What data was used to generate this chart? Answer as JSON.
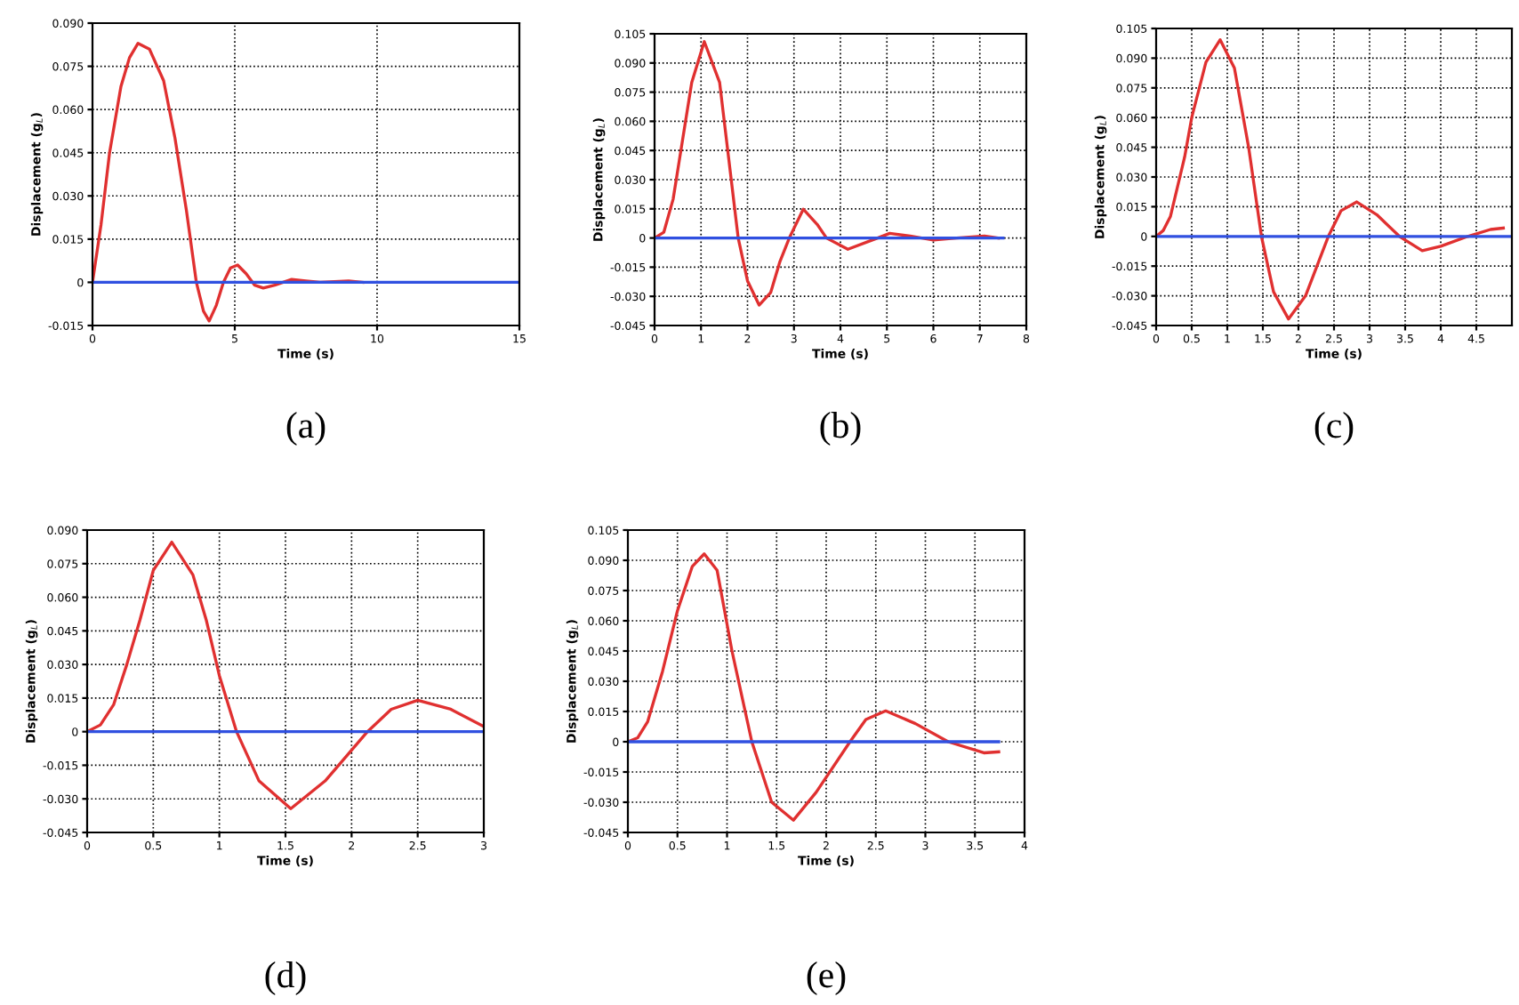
{
  "chart_data": [
    {
      "type": "line",
      "xlabel": "Time (s)",
      "ylabel": "Displacement (g$_{L}$)",
      "annotations": [
        "(a)"
      ],
      "xlim": [
        0,
        15
      ],
      "ylim": [
        -0.015,
        0.09
      ],
      "xticks": [
        0,
        5,
        10,
        15
      ],
      "yticks": [
        -0.015,
        0,
        0.015,
        {
          "value": 0.03,
          "label": "0.030"
        },
        0.045,
        {
          "value": 0.06,
          "label": "0.060"
        },
        0.075,
        {
          "value": 0.09,
          "label": "0.090"
        }
      ],
      "grid": true,
      "series": [
        {
          "color": "#e03030",
          "x": [
            0,
            0.3,
            0.6,
            1.0,
            1.3,
            1.6,
            2.0,
            2.5,
            2.9,
            3.3,
            3.65,
            3.9,
            4.1,
            4.35,
            4.6,
            4.85,
            5.1,
            5.4,
            5.7,
            6.0,
            6.4,
            7.0,
            7.5,
            8.0,
            9.0,
            9.5
          ],
          "values": [
            0,
            0.02,
            0.045,
            0.068,
            0.078,
            0.083,
            0.081,
            0.07,
            0.05,
            0.025,
            0,
            -0.01,
            -0.0134,
            -0.008,
            0,
            0.005,
            0.006,
            0.003,
            -0.001,
            -0.002,
            -0.001,
            0.001,
            0.0005,
            0,
            0.0005,
            0
          ]
        },
        {
          "color": "#3050e0",
          "x": [
            0,
            15
          ],
          "values": [
            0,
            0
          ]
        }
      ]
    },
    {
      "type": "line",
      "xlabel": "Time (s)",
      "ylabel": "Displacement (g$_{L}$)",
      "annotations": [
        "(b)"
      ],
      "xlim": [
        0,
        8
      ],
      "ylim": [
        -0.045,
        0.105
      ],
      "xticks": [
        0,
        1,
        2,
        3,
        4,
        5,
        6,
        7,
        8
      ],
      "yticks": [
        -0.045,
        {
          "value": -0.03,
          "label": "-0.030"
        },
        -0.015,
        0,
        0.015,
        {
          "value": 0.03,
          "label": "0.030"
        },
        0.045,
        {
          "value": 0.06,
          "label": "0.060"
        },
        0.075,
        {
          "value": 0.09,
          "label": "0.090"
        },
        0.105
      ],
      "grid": true,
      "series": [
        {
          "color": "#e03030",
          "x": [
            0,
            0.2,
            0.4,
            0.6,
            0.8,
            1.07,
            1.4,
            1.6,
            1.8,
            2.0,
            2.25,
            2.5,
            2.7,
            2.9,
            3.2,
            3.5,
            3.7,
            4.16,
            4.8,
            5.06,
            5.5,
            6.0,
            6.5,
            7.1,
            7.4
          ],
          "values": [
            0,
            0.003,
            0.02,
            0.05,
            0.08,
            0.101,
            0.08,
            0.04,
            0,
            -0.022,
            -0.0345,
            -0.028,
            -0.012,
            0,
            0.0148,
            0.007,
            0,
            -0.0058,
            0,
            0.0024,
            0.001,
            -0.001,
            0,
            0.001,
            0
          ]
        },
        {
          "color": "#3050e0",
          "x": [
            0,
            7.5
          ],
          "values": [
            0,
            0
          ]
        }
      ]
    },
    {
      "type": "line",
      "xlabel": "Time (s)",
      "ylabel": "Displacement (g$_{L}$)",
      "annotations": [
        "(c)"
      ],
      "xlim": [
        0,
        5
      ],
      "ylim": [
        -0.045,
        0.105
      ],
      "xticks": [
        0,
        0.5,
        1,
        1.5,
        2,
        2.5,
        3,
        3.5,
        4,
        4.5
      ],
      "yticks": [
        -0.045,
        {
          "value": -0.03,
          "label": "-0.030"
        },
        -0.015,
        0,
        0.015,
        {
          "value": 0.03,
          "label": "0.030"
        },
        0.045,
        {
          "value": 0.06,
          "label": "0.060"
        },
        0.075,
        {
          "value": 0.09,
          "label": "0.090"
        },
        0.105
      ],
      "grid": true,
      "series": [
        {
          "color": "#e03030",
          "x": [
            0,
            0.1,
            0.2,
            0.4,
            0.5,
            0.7,
            0.9,
            1.1,
            1.3,
            1.48,
            1.65,
            1.86,
            2.1,
            2.42,
            2.6,
            2.82,
            3.1,
            3.42,
            3.74,
            4.0,
            4.38,
            4.7,
            4.88
          ],
          "values": [
            0,
            0.003,
            0.01,
            0.04,
            0.06,
            0.088,
            0.0993,
            0.085,
            0.045,
            0,
            -0.028,
            -0.0417,
            -0.03,
            0,
            0.013,
            0.0174,
            0.011,
            0,
            -0.0072,
            -0.005,
            0,
            0.0035,
            0.0042
          ]
        },
        {
          "color": "#3050e0",
          "x": [
            0,
            5
          ],
          "values": [
            0,
            0
          ]
        }
      ]
    },
    {
      "type": "line",
      "xlabel": "Time (s)",
      "ylabel": "Displacement (g$_{L}$)",
      "annotations": [
        "(d)"
      ],
      "xlim": [
        0,
        3
      ],
      "ylim": [
        -0.045,
        0.09
      ],
      "xticks": [
        0,
        0.5,
        1,
        1.5,
        2,
        2.5,
        3
      ],
      "yticks": [
        -0.045,
        {
          "value": -0.03,
          "label": "-0.030"
        },
        -0.015,
        0,
        0.015,
        {
          "value": 0.03,
          "label": "0.030"
        },
        0.045,
        {
          "value": 0.06,
          "label": "0.060"
        },
        0.075,
        {
          "value": 0.09,
          "label": "0.090"
        }
      ],
      "grid": true,
      "series": [
        {
          "color": "#e03030",
          "x": [
            0,
            0.1,
            0.2,
            0.3,
            0.4,
            0.5,
            0.64,
            0.8,
            0.9,
            1.0,
            1.13,
            1.3,
            1.54,
            1.8,
            2.12,
            2.3,
            2.5,
            2.75,
            3.0
          ],
          "values": [
            0,
            0.003,
            0.012,
            0.03,
            0.05,
            0.072,
            0.0846,
            0.07,
            0.05,
            0.025,
            0,
            -0.022,
            -0.0344,
            -0.022,
            0,
            0.01,
            0.014,
            0.01,
            0.0023
          ]
        },
        {
          "color": "#3050e0",
          "x": [
            0,
            3
          ],
          "values": [
            0,
            0
          ]
        }
      ]
    },
    {
      "type": "line",
      "xlabel": "Time (s)",
      "ylabel": "Displacement (g$_{L}$)",
      "annotations": [
        "(e)"
      ],
      "xlim": [
        0,
        4
      ],
      "ylim": [
        -0.045,
        0.105
      ],
      "xticks": [
        0,
        0.5,
        1,
        1.5,
        2,
        2.5,
        3,
        3.5,
        4
      ],
      "yticks": [
        -0.045,
        {
          "value": -0.03,
          "label": "-0.030"
        },
        -0.015,
        0,
        0.015,
        {
          "value": 0.03,
          "label": "0.030"
        },
        0.045,
        {
          "value": 0.06,
          "label": "0.060"
        },
        0.075,
        {
          "value": 0.09,
          "label": "0.090"
        },
        0.105
      ],
      "grid": true,
      "series": [
        {
          "color": "#e03030",
          "x": [
            0,
            0.1,
            0.2,
            0.35,
            0.5,
            0.65,
            0.77,
            0.9,
            1.05,
            1.25,
            1.45,
            1.67,
            1.9,
            2.24,
            2.4,
            2.6,
            2.9,
            3.23,
            3.59,
            3.74
          ],
          "values": [
            0,
            0.002,
            0.01,
            0.035,
            0.065,
            0.087,
            0.0932,
            0.085,
            0.045,
            0,
            -0.03,
            -0.0389,
            -0.025,
            0,
            0.011,
            0.0153,
            0.009,
            0,
            -0.0055,
            -0.005
          ]
        },
        {
          "color": "#3050e0",
          "x": [
            0,
            3.74
          ],
          "values": [
            0,
            0
          ]
        }
      ]
    }
  ]
}
